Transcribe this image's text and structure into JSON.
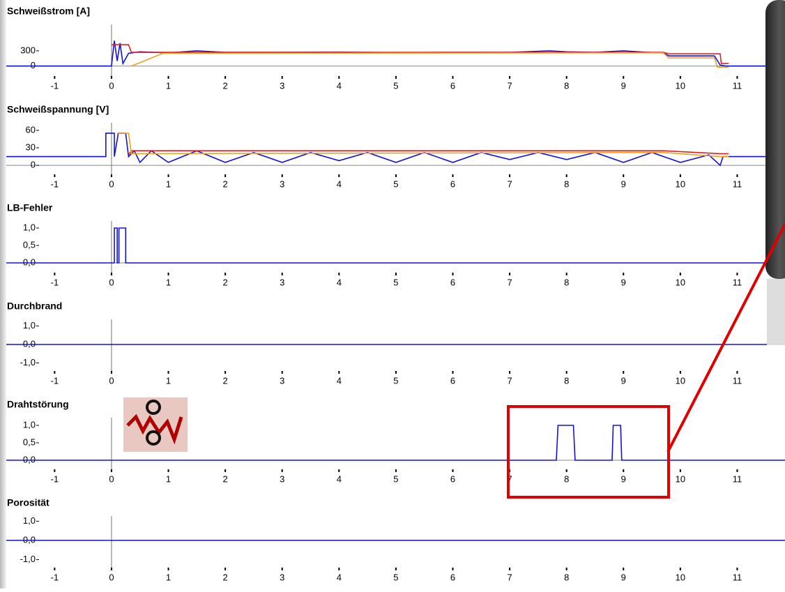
{
  "chart_data": [
    {
      "type": "line",
      "title": "Schweißstrom [A]",
      "xlim": [
        -1.85,
        11.84
      ],
      "xticks": [
        -1,
        0,
        1,
        2,
        3,
        4,
        5,
        6,
        7,
        8,
        9,
        10,
        11
      ],
      "ylim": [
        -100,
        820
      ],
      "yticks": [
        0,
        300
      ],
      "series": [
        {
          "color": "#1010e0",
          "x": [
            -1.85,
            0,
            0.05,
            0.1,
            0.15,
            0.2,
            0.3,
            0.5,
            1,
            1.5,
            2,
            3,
            4,
            5,
            6,
            7,
            7.7,
            8,
            8.5,
            9,
            9.5,
            9.7,
            9.8,
            10.6,
            10.7,
            10.8,
            11.84
          ],
          "values": [
            0,
            0,
            500,
            100,
            450,
            50,
            250,
            280,
            260,
            300,
            270,
            270,
            275,
            265,
            270,
            270,
            300,
            280,
            270,
            300,
            265,
            260,
            200,
            200,
            20,
            0,
            0
          ]
        },
        {
          "color": "#e02020",
          "x": [
            0,
            0.3,
            0.35,
            9.7,
            9.8,
            10.7,
            10.72,
            10.85
          ],
          "values": [
            420,
            420,
            270,
            270,
            240,
            240,
            50,
            50
          ]
        },
        {
          "color": "#f0a020",
          "x": [
            0.35,
            0.9,
            9.7,
            9.8,
            10.6,
            10.65,
            10.85
          ],
          "values": [
            0,
            250,
            260,
            160,
            160,
            -20,
            -20
          ]
        }
      ]
    },
    {
      "type": "line",
      "title": "Schweißspannung [V]",
      "xlim": [
        -1.85,
        11.84
      ],
      "xticks": [
        -1,
        0,
        1,
        2,
        3,
        4,
        5,
        6,
        7,
        8,
        9,
        10,
        11
      ],
      "ylim": [
        -7,
        73
      ],
      "yticks": [
        0,
        30,
        60
      ],
      "series": [
        {
          "color": "#1010e0",
          "x": [
            -1.85,
            -0.1,
            -0.1,
            0.05,
            0.05,
            0.12,
            0.25,
            0.3,
            0.4,
            0.5,
            0.7,
            1,
            1.5,
            2,
            2.5,
            3,
            3.5,
            4,
            4.5,
            5,
            5.5,
            6,
            6.5,
            7,
            7.5,
            8,
            8.5,
            9,
            9.5,
            10,
            10.5,
            10.7,
            10.75,
            11.84
          ],
          "values": [
            15,
            15,
            55,
            55,
            15,
            55,
            55,
            15,
            25,
            5,
            25,
            5,
            25,
            5,
            22,
            5,
            22,
            8,
            22,
            5,
            22,
            5,
            22,
            10,
            22,
            10,
            22,
            5,
            22,
            5,
            18,
            0,
            15,
            15
          ]
        },
        {
          "color": "#e02020",
          "x": [
            0.3,
            0.35,
            9.7,
            10.7,
            10.85
          ],
          "values": [
            18,
            25,
            25,
            20,
            20
          ]
        },
        {
          "color": "#f0a020",
          "x": [
            0.1,
            0.3,
            0.35,
            9.7,
            10.7,
            10.85
          ],
          "values": [
            55,
            55,
            20,
            22,
            15,
            15
          ]
        }
      ]
    },
    {
      "type": "line",
      "title": "LB-Fehler",
      "xlim": [
        -1.85,
        11.84
      ],
      "xticks": [
        -1,
        0,
        1,
        2,
        3,
        4,
        5,
        6,
        7,
        8,
        9,
        10,
        11
      ],
      "ylim": [
        -0.14,
        1.2
      ],
      "yticks": [
        {
          "value": 0,
          "label": "0,0"
        },
        {
          "value": 0.5,
          "label": "0,5"
        },
        {
          "value": 1,
          "label": "1,0"
        }
      ],
      "series": [
        {
          "color": "#1010e0",
          "x": [
            -1.85,
            0.05,
            0.05,
            0.1,
            0.1,
            0.13,
            0.13,
            0.25,
            0.25,
            11.84
          ],
          "values": [
            0,
            0,
            1,
            1,
            0,
            0,
            1,
            1,
            0,
            0
          ]
        }
      ]
    },
    {
      "type": "line",
      "title": "Durchbrand",
      "xlim": [
        -1.85,
        11.84
      ],
      "xticks": [
        -1,
        0,
        1,
        2,
        3,
        4,
        5,
        6,
        7,
        8,
        9,
        10,
        11
      ],
      "ylim": [
        -1.17,
        1.36
      ],
      "yticks": [
        {
          "value": -1,
          "label": "-1,0"
        },
        {
          "value": 0,
          "label": "0,0"
        },
        {
          "value": 1,
          "label": "1,0"
        }
      ],
      "series": [
        {
          "color": "#1010e0",
          "x": [
            -1.85,
            11.84
          ],
          "values": [
            0,
            0
          ]
        }
      ]
    },
    {
      "type": "line",
      "title": "Drahtstörung",
      "xlim": [
        -1.85,
        11.84
      ],
      "xticks": [
        -1,
        0,
        1,
        2,
        3,
        4,
        5,
        6,
        7,
        8,
        9,
        10,
        11
      ],
      "ylim": [
        -0.12,
        1.22
      ],
      "yticks": [
        {
          "value": 0,
          "label": "0,0"
        },
        {
          "value": 0.5,
          "label": "0,5"
        },
        {
          "value": 1,
          "label": "1,0"
        }
      ],
      "series": [
        {
          "color": "#1010e0",
          "x": [
            -1.85,
            7.82,
            7.85,
            8.12,
            8.15,
            8.8,
            8.82,
            8.95,
            8.97,
            11.84
          ],
          "values": [
            0,
            0,
            1,
            1,
            0,
            0,
            1,
            1,
            0,
            0
          ]
        }
      ]
    },
    {
      "type": "line",
      "title": "Porosität",
      "xlim": [
        -1.85,
        11.84
      ],
      "xticks": [
        -1,
        0,
        1,
        2,
        3,
        4,
        5,
        6,
        7,
        8,
        9,
        10,
        11
      ],
      "ylim": [
        -1.16,
        1.27
      ],
      "yticks": [
        {
          "value": -1,
          "label": "-1,0"
        },
        {
          "value": 0,
          "label": "0,0"
        },
        {
          "value": 1,
          "label": "1,0"
        }
      ],
      "series": [
        {
          "color": "#1010e0",
          "x": [
            -1.85,
            11.84
          ],
          "values": [
            0,
            0
          ]
        }
      ]
    }
  ]
}
